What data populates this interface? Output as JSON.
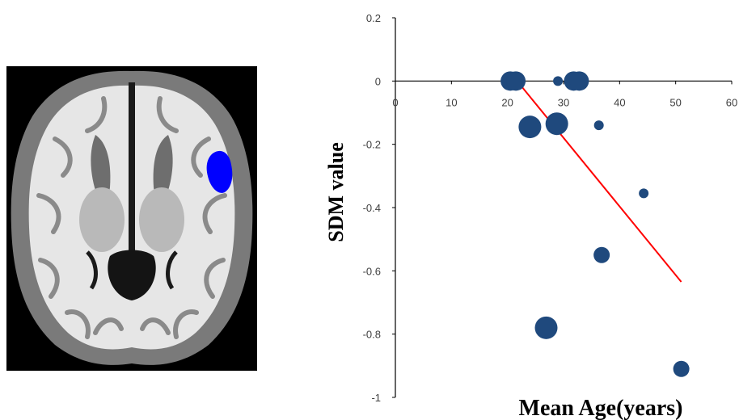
{
  "brain_image": {
    "description_icon": "brain-axial-slice-icon",
    "highlight_color": "#0000ff"
  },
  "chart_data": {
    "type": "scatter",
    "xlabel": "Mean Age(years)",
    "ylabel": "SDM value",
    "xlim": [
      0,
      60
    ],
    "ylim": [
      -1,
      0.2
    ],
    "x_ticks": [
      0,
      10,
      20,
      30,
      40,
      50,
      60
    ],
    "y_ticks": [
      0.2,
      0,
      -0.2,
      -0.4,
      -0.6,
      -0.8,
      -1
    ],
    "x_tick_labels": [
      "0",
      "10",
      "20",
      "30",
      "40",
      "50",
      "60"
    ],
    "y_tick_labels": [
      "0.2",
      "0",
      "-0.2",
      "-0.4",
      "-0.6",
      "-0.8",
      "-1"
    ],
    "grid": false,
    "legend": "none",
    "marker_color": "#1f497d",
    "trendline_color": "#ff0000",
    "points": [
      {
        "x": 20.5,
        "y": 0.0,
        "size": "large"
      },
      {
        "x": 21.5,
        "y": 0.0,
        "size": "large"
      },
      {
        "x": 29.0,
        "y": 0.0,
        "size": "small"
      },
      {
        "x": 31.8,
        "y": 0.0,
        "size": "large"
      },
      {
        "x": 32.8,
        "y": 0.0,
        "size": "large"
      },
      {
        "x": 24.0,
        "y": -0.145,
        "size": "xlarge"
      },
      {
        "x": 28.8,
        "y": -0.135,
        "size": "xlarge"
      },
      {
        "x": 36.3,
        "y": -0.14,
        "size": "small"
      },
      {
        "x": 44.3,
        "y": -0.355,
        "size": "small"
      },
      {
        "x": 36.8,
        "y": -0.55,
        "size": "medium"
      },
      {
        "x": 26.9,
        "y": -0.78,
        "size": "xlarge"
      },
      {
        "x": 51.0,
        "y": -0.91,
        "size": "medium"
      }
    ],
    "trendline": {
      "x": [
        20.8,
        51.0
      ],
      "y": [
        0.02,
        -0.635
      ]
    }
  }
}
